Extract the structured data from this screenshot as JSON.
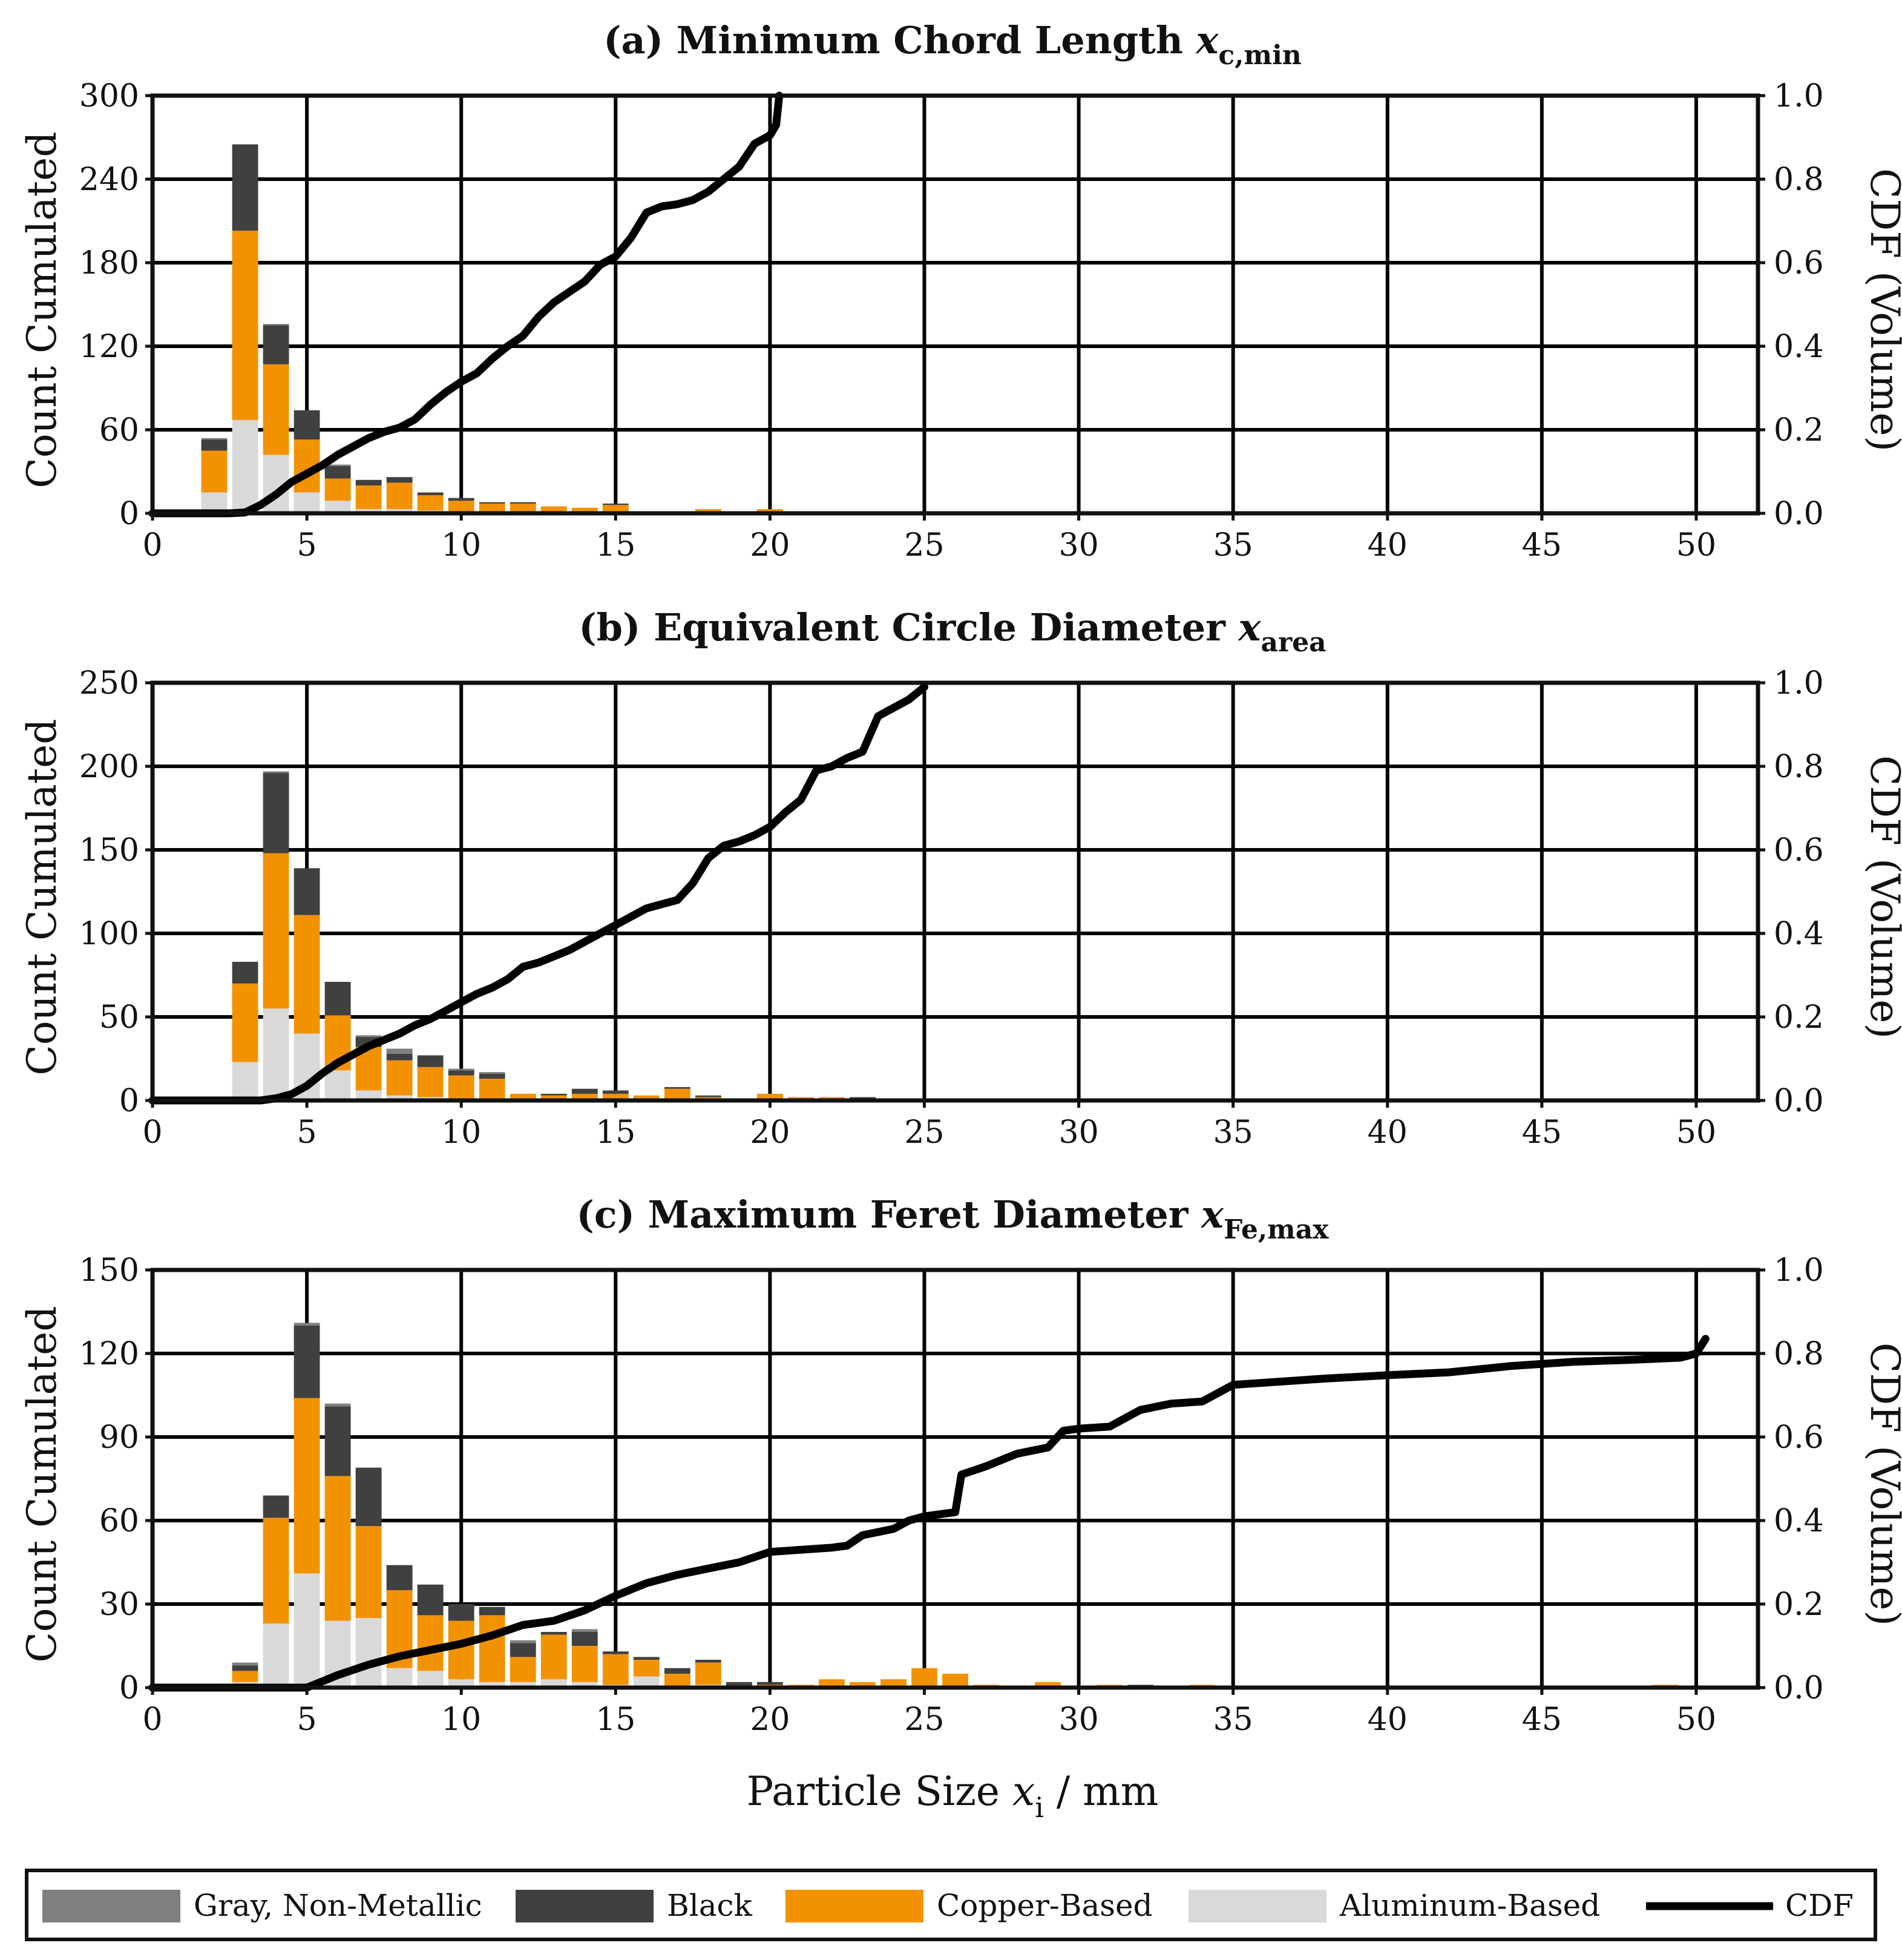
{
  "chart_data": [
    {
      "type": "bar",
      "stacked": true,
      "title": "(a) Minimum Chord Length ",
      "title_var": "x",
      "title_sub": "c,min",
      "ylabel": "Count Cumulated",
      "y2label": "CDF (Volume)",
      "xlim": [
        0,
        52
      ],
      "ylim": [
        0,
        300
      ],
      "y2lim": [
        0,
        1
      ],
      "xticks": [
        "0",
        "5",
        "10",
        "15",
        "20",
        "25",
        "30",
        "35",
        "40",
        "45",
        "50"
      ],
      "yticks": [
        "0",
        "60",
        "120",
        "180",
        "240",
        "300"
      ],
      "y2ticks": [
        "0.0",
        "0.2",
        "0.4",
        "0.6",
        "0.8",
        "1.0"
      ],
      "grid": true,
      "bar_x": [
        2,
        3,
        4,
        5,
        6,
        7,
        8,
        9,
        10,
        11,
        12,
        13,
        14,
        15,
        18,
        20
      ],
      "series": [
        {
          "name": "Aluminum-Based",
          "values": [
            15,
            67,
            42,
            15,
            9,
            3,
            3,
            2,
            1,
            1,
            0,
            0,
            0,
            0,
            0,
            0
          ]
        },
        {
          "name": "Copper-Based",
          "values": [
            30,
            136,
            65,
            38,
            16,
            17,
            19,
            11,
            8,
            6,
            7,
            5,
            4,
            6,
            3,
            3
          ]
        },
        {
          "name": "Black",
          "values": [
            8,
            62,
            28,
            21,
            9,
            4,
            4,
            2,
            2,
            1,
            1,
            0,
            0,
            1,
            0,
            0
          ]
        },
        {
          "name": "Gray, Non-Metallic",
          "values": [
            1,
            0,
            1,
            0,
            1,
            0,
            0,
            0,
            0,
            0,
            0,
            0,
            0,
            0,
            0,
            0
          ]
        }
      ],
      "cdf": {
        "name": "CDF",
        "x": [
          0,
          2.5,
          3,
          3.5,
          4,
          4.5,
          5,
          5.5,
          6,
          6.5,
          7,
          7.5,
          8,
          8.5,
          9,
          9.5,
          10,
          10.5,
          11,
          11.5,
          12,
          12.5,
          13,
          13.5,
          14,
          14.5,
          15,
          15.5,
          16,
          16.5,
          17,
          17.5,
          18,
          18.5,
          19,
          19.5,
          20,
          20.2,
          20.3
        ],
        "y": [
          0,
          0,
          0.002,
          0.02,
          0.045,
          0.075,
          0.095,
          0.115,
          0.14,
          0.16,
          0.18,
          0.195,
          0.205,
          0.225,
          0.26,
          0.29,
          0.315,
          0.335,
          0.37,
          0.4,
          0.425,
          0.47,
          0.505,
          0.53,
          0.555,
          0.595,
          0.615,
          0.66,
          0.72,
          0.735,
          0.74,
          0.75,
          0.77,
          0.8,
          0.83,
          0.885,
          0.905,
          0.93,
          1.0
        ]
      }
    },
    {
      "type": "bar",
      "stacked": true,
      "title": "(b) Equivalent Circle Diameter ",
      "title_var": "x",
      "title_sub": "area",
      "ylabel": "Count Cumulated",
      "y2label": "CDF (Volume)",
      "xlim": [
        0,
        52
      ],
      "ylim": [
        0,
        250
      ],
      "y2lim": [
        0,
        1
      ],
      "xticks": [
        "0",
        "5",
        "10",
        "15",
        "20",
        "25",
        "30",
        "35",
        "40",
        "45",
        "50"
      ],
      "yticks": [
        "0",
        "50",
        "100",
        "150",
        "200",
        "250"
      ],
      "y2ticks": [
        "0.0",
        "0.2",
        "0.4",
        "0.6",
        "0.8",
        "1.0"
      ],
      "grid": true,
      "bar_x": [
        3,
        4,
        5,
        6,
        7,
        8,
        9,
        10,
        11,
        12,
        13,
        14,
        15,
        16,
        17,
        18,
        20,
        21,
        22,
        23
      ],
      "series": [
        {
          "name": "Aluminum-Based",
          "values": [
            23,
            55,
            40,
            18,
            6,
            3,
            2,
            1,
            1,
            0,
            0,
            0,
            0,
            0,
            0,
            0,
            0,
            0,
            0,
            0
          ]
        },
        {
          "name": "Copper-Based",
          "values": [
            47,
            93,
            71,
            33,
            26,
            21,
            18,
            14,
            12,
            4,
            3,
            4,
            4,
            3,
            7,
            2,
            4,
            2,
            2,
            1
          ]
        },
        {
          "name": "Black",
          "values": [
            13,
            48,
            28,
            20,
            6,
            4,
            7,
            3,
            3,
            0,
            1,
            3,
            2,
            0,
            1,
            1,
            0,
            0,
            0,
            1
          ]
        },
        {
          "name": "Gray, Non-Metallic",
          "values": [
            0,
            1,
            0,
            0,
            1,
            3,
            0,
            1,
            1,
            0,
            0,
            0,
            0,
            0,
            0,
            0,
            0,
            0,
            0,
            0
          ]
        }
      ],
      "cdf": {
        "name": "CDF",
        "x": [
          0,
          3.5,
          4,
          4.5,
          5,
          5.5,
          6,
          6.5,
          7,
          7.5,
          8,
          8.5,
          9,
          9.5,
          10,
          10.5,
          11,
          11.5,
          12,
          12.5,
          13,
          13.5,
          14,
          14.5,
          15,
          15.5,
          16,
          16.5,
          17,
          17.5,
          18,
          18.5,
          19,
          19.5,
          20,
          20.5,
          21,
          21.5,
          22,
          22.5,
          23,
          23.5,
          24,
          24.5,
          25
        ],
        "y": [
          0,
          0,
          0.005,
          0.015,
          0.035,
          0.065,
          0.09,
          0.11,
          0.13,
          0.145,
          0.16,
          0.18,
          0.195,
          0.215,
          0.235,
          0.255,
          0.27,
          0.29,
          0.32,
          0.33,
          0.345,
          0.36,
          0.38,
          0.4,
          0.42,
          0.44,
          0.46,
          0.47,
          0.48,
          0.52,
          0.58,
          0.61,
          0.62,
          0.635,
          0.655,
          0.69,
          0.72,
          0.79,
          0.8,
          0.82,
          0.835,
          0.92,
          0.94,
          0.96,
          0.99
        ]
      }
    },
    {
      "type": "bar",
      "stacked": true,
      "title": "(c) Maximum Feret Diameter ",
      "title_var": "x",
      "title_sub": "Fe,max",
      "ylabel": "Count Cumulated",
      "y2label": "CDF (Volume)",
      "xlim": [
        0,
        52
      ],
      "ylim": [
        0,
        150
      ],
      "y2lim": [
        0,
        1
      ],
      "xticks": [
        "0",
        "5",
        "10",
        "15",
        "20",
        "25",
        "30",
        "35",
        "40",
        "45",
        "50"
      ],
      "yticks": [
        "0",
        "30",
        "60",
        "90",
        "120",
        "150"
      ],
      "y2ticks": [
        "0.0",
        "0.2",
        "0.4",
        "0.6",
        "0.8",
        "1.0"
      ],
      "grid": true,
      "bar_x": [
        3,
        4,
        5,
        6,
        7,
        8,
        9,
        10,
        11,
        12,
        13,
        14,
        15,
        16,
        17,
        18,
        19,
        20,
        21,
        22,
        23,
        24,
        25,
        26,
        27,
        29,
        31,
        32,
        34,
        49
      ],
      "series": [
        {
          "name": "Aluminum-Based",
          "values": [
            2,
            23,
            41,
            24,
            25,
            7,
            6,
            3,
            2,
            2,
            3,
            2,
            1,
            4,
            0,
            1,
            0,
            0,
            0,
            0,
            0,
            0,
            0,
            0,
            0,
            0,
            0,
            0,
            0,
            0
          ]
        },
        {
          "name": "Copper-Based",
          "values": [
            4,
            38,
            63,
            52,
            33,
            28,
            20,
            21,
            24,
            9,
            16,
            13,
            11,
            6,
            5,
            8,
            0,
            1,
            1,
            3,
            2,
            3,
            7,
            5,
            1,
            2,
            1,
            0,
            1,
            1
          ]
        },
        {
          "name": "Black",
          "values": [
            2,
            8,
            26,
            25,
            21,
            9,
            11,
            6,
            3,
            5,
            1,
            5,
            1,
            1,
            2,
            1,
            2,
            1,
            0,
            0,
            0,
            0,
            0,
            0,
            0,
            0,
            0,
            1,
            0,
            0
          ]
        },
        {
          "name": "Gray, Non-Metallic",
          "values": [
            1,
            0,
            1,
            1,
            0,
            0,
            0,
            0,
            0,
            1,
            0,
            1,
            0,
            0,
            0,
            0,
            0,
            0,
            0,
            0,
            0,
            0,
            0,
            0,
            0,
            0,
            0,
            0,
            0,
            0
          ]
        }
      ],
      "cdf": {
        "name": "CDF",
        "x": [
          0,
          5,
          6,
          7,
          8,
          9,
          10,
          11,
          12,
          13,
          14,
          15,
          16,
          17,
          18,
          19,
          20,
          21,
          22,
          22.5,
          23,
          24,
          24.5,
          25,
          26,
          26.2,
          27,
          28,
          29,
          29.5,
          30,
          31,
          32,
          33,
          34,
          35,
          36,
          38,
          40,
          42,
          44,
          46,
          48,
          49.5,
          50,
          50.3
        ],
        "y": [
          0,
          0,
          0.03,
          0.055,
          0.075,
          0.09,
          0.105,
          0.125,
          0.15,
          0.16,
          0.185,
          0.22,
          0.25,
          0.27,
          0.285,
          0.3,
          0.325,
          0.33,
          0.335,
          0.34,
          0.365,
          0.38,
          0.4,
          0.41,
          0.42,
          0.51,
          0.53,
          0.56,
          0.575,
          0.615,
          0.62,
          0.625,
          0.665,
          0.68,
          0.685,
          0.725,
          0.73,
          0.74,
          0.748,
          0.755,
          0.77,
          0.78,
          0.785,
          0.79,
          0.8,
          0.835
        ]
      }
    }
  ],
  "xlabel": "Particle Size ",
  "xlabel_var": "x",
  "xlabel_sub": "i",
  "xlabel_unit": " / mm",
  "legend": {
    "position": "bottom",
    "items": [
      {
        "name": "Gray, Non-Metallic",
        "color": "#7f7f7f",
        "kind": "bar"
      },
      {
        "name": "Black",
        "color": "#404040",
        "kind": "bar"
      },
      {
        "name": "Copper-Based",
        "color": "#f39200",
        "kind": "bar"
      },
      {
        "name": "Aluminum-Based",
        "color": "#d9d9d9",
        "kind": "bar"
      },
      {
        "name": "CDF",
        "color": "#000000",
        "kind": "line"
      }
    ]
  },
  "colors": {
    "Aluminum-Based": "#d9d9d9",
    "Copper-Based": "#f39200",
    "Black": "#404040",
    "Gray, Non-Metallic": "#7f7f7f",
    "CDF": "#000000"
  }
}
